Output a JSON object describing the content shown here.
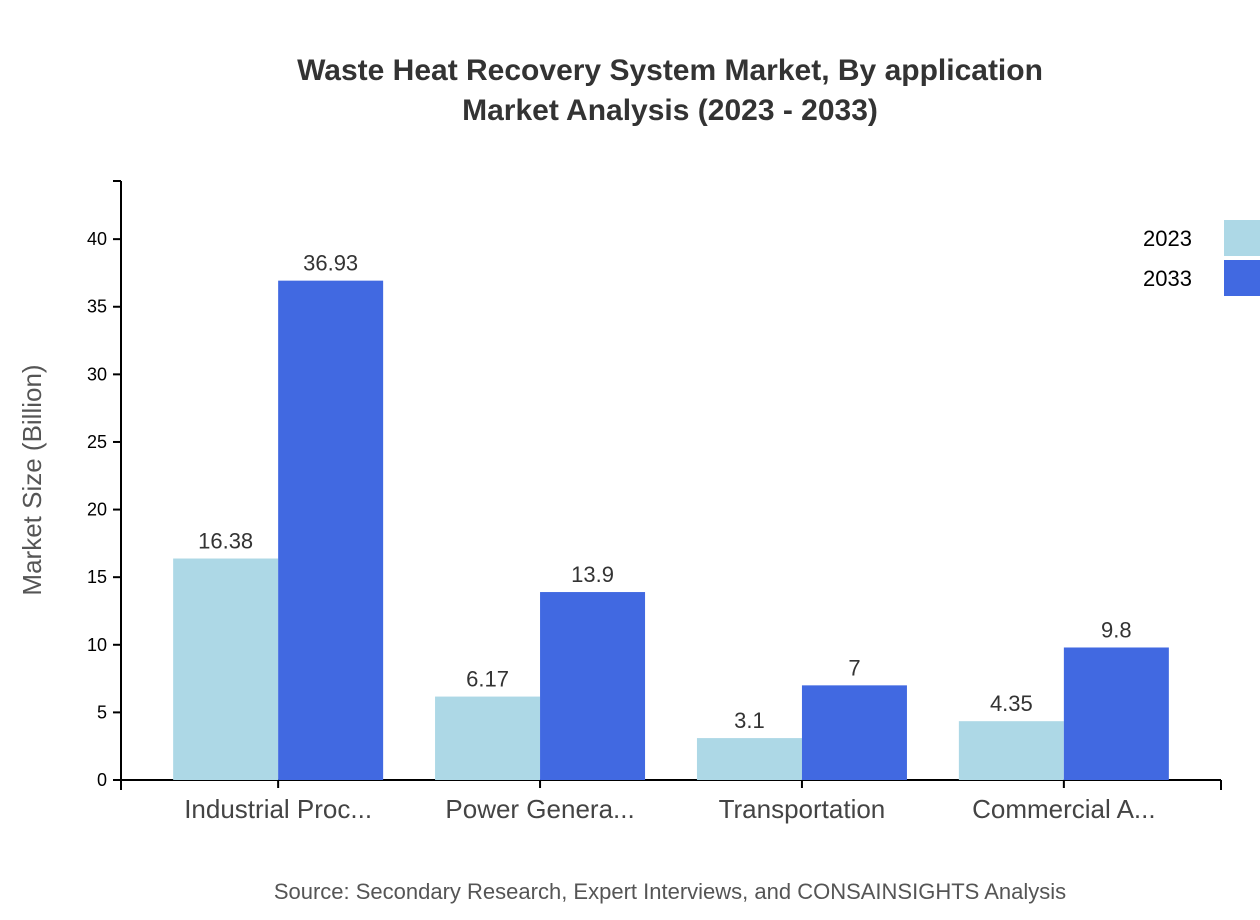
{
  "chart_data": {
    "type": "bar",
    "title": "Waste Heat Recovery System Market, By application",
    "subtitle": "Market Analysis (2023 - 2033)",
    "xlabel": "",
    "ylabel": "Market Size (Billion)",
    "categories": [
      "Industrial Proc...",
      "Power Genera...",
      "Transportation",
      "Commercial A..."
    ],
    "series": [
      {
        "name": "2023",
        "color": "#add8e6",
        "values": [
          16.38,
          6.17,
          3.1,
          4.35
        ],
        "labels": [
          "16.38",
          "6.17",
          "3.1",
          "4.35"
        ]
      },
      {
        "name": "2033",
        "color": "#4169e1",
        "values": [
          36.93,
          13.9,
          7,
          9.8
        ],
        "labels": [
          "36.93",
          "13.9",
          "7",
          "9.8"
        ]
      }
    ],
    "ylim": [
      0,
      44.3
    ],
    "yticks": [
      "0",
      "5",
      "10",
      "15",
      "20",
      "25",
      "30",
      "35",
      "40"
    ],
    "grid": false,
    "legend": "top-right",
    "source": "Source: Secondary Research, Expert Interviews, and CONSAINSIGHTS Analysis"
  }
}
